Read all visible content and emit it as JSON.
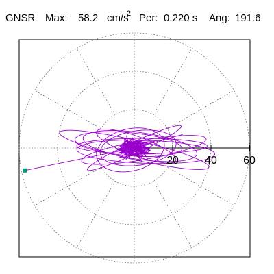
{
  "header": {
    "station": "GNSR",
    "max_label": "Max:",
    "max_value": "58.2",
    "max_unit": "cm/s",
    "max_unit_exp": "2",
    "per_label": "Per:",
    "per_value": "0.220 s",
    "ang_label": "Ang:",
    "ang_value": "191.6"
  },
  "colors": {
    "trace": "#9900cc",
    "marker": "#009977",
    "grid": "#666666",
    "axis": "#000000",
    "frame": "#000000"
  },
  "chart_data": {
    "type": "polar-orbit",
    "radial_ticks": [
      20,
      40,
      60
    ],
    "radial_max": 60,
    "spoke_angles_deg": [
      0,
      30,
      60,
      90,
      120,
      150,
      180,
      210,
      240,
      270,
      300,
      330
    ],
    "peak": {
      "magnitude": 58.2,
      "angle_deg": 191.6
    },
    "orbit_loops": [
      {
        "a": 30,
        "b": 7,
        "tilt_deg": 172,
        "cx": 3,
        "cy": 1
      },
      {
        "a": 33,
        "b": 5,
        "tilt_deg": 190,
        "cx": 5,
        "cy": -1
      },
      {
        "a": 28,
        "b": 6,
        "tilt_deg": 175,
        "cx": -3,
        "cy": 2
      },
      {
        "a": 40,
        "b": 5,
        "tilt_deg": 167,
        "cx": 0,
        "cy": -1
      },
      {
        "a": 20,
        "b": 9,
        "tilt_deg": 188,
        "cx": 2,
        "cy": 0
      },
      {
        "a": 34,
        "b": 4,
        "tilt_deg": 180,
        "cx": 4,
        "cy": 1
      },
      {
        "a": 18,
        "b": 11,
        "tilt_deg": 193,
        "cx": -2,
        "cy": -1
      },
      {
        "a": 27,
        "b": 3,
        "tilt_deg": 205,
        "cx": 0,
        "cy": 0
      },
      {
        "a": 22,
        "b": 5,
        "tilt_deg": 160,
        "cx": 1,
        "cy": 1
      },
      {
        "a": 36,
        "b": 6,
        "tilt_deg": 178,
        "cx": 6,
        "cy": -2
      }
    ],
    "spike_lines": [
      {
        "angle_deg": 191.6,
        "magnitude": 58.2
      }
    ],
    "core_noise": {
      "count": 220,
      "radius": 7
    }
  }
}
